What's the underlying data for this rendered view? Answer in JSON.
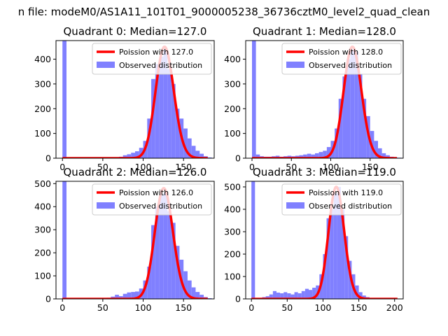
{
  "figure": {
    "suptitle": "n file: modeM0/AS1A11_101T01_9000005238_36736cztM0_level2_quad_clean",
    "colors": {
      "hist": "#8080ff",
      "fit": "#ff0000"
    }
  },
  "chart_data": [
    {
      "type": "bar+line",
      "title": "Quadrant 0: Median=127.0",
      "xlim": [
        -8,
        188
      ],
      "ylim": [
        0,
        475
      ],
      "xticks": [
        0,
        50,
        100,
        150
      ],
      "yticks": [
        0,
        100,
        200,
        300,
        400
      ],
      "bin_width": 5,
      "bins": [
        [
          0,
          475
        ],
        [
          5,
          2
        ],
        [
          10,
          1
        ],
        [
          15,
          1
        ],
        [
          20,
          1
        ],
        [
          25,
          1
        ],
        [
          30,
          1
        ],
        [
          35,
          1
        ],
        [
          40,
          1
        ],
        [
          45,
          1
        ],
        [
          50,
          2
        ],
        [
          55,
          2
        ],
        [
          60,
          3
        ],
        [
          65,
          4
        ],
        [
          70,
          6
        ],
        [
          75,
          12
        ],
        [
          80,
          16
        ],
        [
          85,
          22
        ],
        [
          90,
          28
        ],
        [
          95,
          42
        ],
        [
          100,
          70
        ],
        [
          105,
          160
        ],
        [
          110,
          320
        ],
        [
          115,
          380
        ],
        [
          120,
          410
        ],
        [
          125,
          440
        ],
        [
          130,
          360
        ],
        [
          135,
          300
        ],
        [
          140,
          200
        ],
        [
          145,
          160
        ],
        [
          150,
          120
        ],
        [
          155,
          80
        ],
        [
          160,
          50
        ],
        [
          165,
          30
        ],
        [
          170,
          18
        ],
        [
          175,
          8
        ],
        [
          180,
          3
        ]
      ],
      "fit": {
        "mean": 127.0,
        "peak": 450
      },
      "legend": {
        "fit_label": "Poission with 127.0",
        "hist_label": "Observed distribution"
      }
    },
    {
      "type": "bar+line",
      "title": "Quadrant 1: Median=128.0",
      "xlim": [
        -8,
        192
      ],
      "ylim": [
        0,
        475
      ],
      "xticks": [
        0,
        50,
        100,
        150
      ],
      "yticks": [
        0,
        100,
        200,
        300,
        400
      ],
      "bin_width": 5,
      "bins": [
        [
          0,
          475
        ],
        [
          5,
          15
        ],
        [
          10,
          8
        ],
        [
          15,
          6
        ],
        [
          20,
          6
        ],
        [
          25,
          8
        ],
        [
          30,
          10
        ],
        [
          35,
          6
        ],
        [
          40,
          8
        ],
        [
          45,
          10
        ],
        [
          50,
          8
        ],
        [
          55,
          10
        ],
        [
          60,
          12
        ],
        [
          65,
          15
        ],
        [
          70,
          18
        ],
        [
          75,
          15
        ],
        [
          80,
          20
        ],
        [
          85,
          25
        ],
        [
          90,
          30
        ],
        [
          95,
          45
        ],
        [
          100,
          70
        ],
        [
          105,
          120
        ],
        [
          110,
          240
        ],
        [
          115,
          330
        ],
        [
          120,
          400
        ],
        [
          125,
          440
        ],
        [
          130,
          430
        ],
        [
          135,
          340
        ],
        [
          140,
          240
        ],
        [
          145,
          170
        ],
        [
          150,
          110
        ],
        [
          155,
          70
        ],
        [
          160,
          40
        ],
        [
          165,
          20
        ],
        [
          170,
          12
        ],
        [
          175,
          6
        ],
        [
          180,
          3
        ],
        [
          185,
          2
        ]
      ],
      "fit": {
        "mean": 128.0,
        "peak": 450
      },
      "legend": {
        "fit_label": "Poission with 128.0",
        "hist_label": "Observed distribution"
      }
    },
    {
      "type": "bar+line",
      "title": "Quadrant 2: Median=126.0",
      "xlim": [
        -8,
        188
      ],
      "ylim": [
        0,
        510
      ],
      "xticks": [
        0,
        50,
        100,
        150
      ],
      "yticks": [
        0,
        100,
        200,
        300,
        400,
        500
      ],
      "bin_width": 5,
      "bins": [
        [
          0,
          510
        ],
        [
          5,
          2
        ],
        [
          10,
          1
        ],
        [
          15,
          1
        ],
        [
          20,
          1
        ],
        [
          25,
          1
        ],
        [
          30,
          1
        ],
        [
          35,
          1
        ],
        [
          40,
          2
        ],
        [
          45,
          3
        ],
        [
          50,
          3
        ],
        [
          55,
          5
        ],
        [
          60,
          10
        ],
        [
          65,
          18
        ],
        [
          70,
          12
        ],
        [
          75,
          22
        ],
        [
          80,
          28
        ],
        [
          85,
          30
        ],
        [
          90,
          32
        ],
        [
          95,
          45
        ],
        [
          100,
          80
        ],
        [
          105,
          140
        ],
        [
          110,
          320
        ],
        [
          115,
          400
        ],
        [
          120,
          450
        ],
        [
          125,
          460
        ],
        [
          130,
          380
        ],
        [
          135,
          330
        ],
        [
          140,
          230
        ],
        [
          145,
          170
        ],
        [
          150,
          120
        ],
        [
          155,
          80
        ],
        [
          160,
          50
        ],
        [
          165,
          30
        ],
        [
          170,
          18
        ],
        [
          175,
          8
        ],
        [
          180,
          3
        ]
      ],
      "fit": {
        "mean": 126.0,
        "peak": 480
      },
      "legend": {
        "fit_label": "Poission with 126.0",
        "hist_label": "Observed distribution"
      }
    },
    {
      "type": "bar+line",
      "title": "Quadrant 3: Median=119.0",
      "xlim": [
        -8,
        212
      ],
      "ylim": [
        0,
        525
      ],
      "xticks": [
        0,
        50,
        100,
        150,
        200
      ],
      "yticks": [
        0,
        100,
        200,
        300,
        400,
        500
      ],
      "bin_width": 5,
      "bins": [
        [
          0,
          525
        ],
        [
          5,
          4
        ],
        [
          10,
          4
        ],
        [
          15,
          8
        ],
        [
          20,
          12
        ],
        [
          25,
          20
        ],
        [
          30,
          35
        ],
        [
          35,
          28
        ],
        [
          40,
          25
        ],
        [
          45,
          30
        ],
        [
          50,
          25
        ],
        [
          55,
          20
        ],
        [
          60,
          30
        ],
        [
          65,
          25
        ],
        [
          70,
          35
        ],
        [
          75,
          45
        ],
        [
          80,
          40
        ],
        [
          85,
          50
        ],
        [
          90,
          60
        ],
        [
          95,
          110
        ],
        [
          100,
          200
        ],
        [
          105,
          360
        ],
        [
          110,
          400
        ],
        [
          115,
          470
        ],
        [
          120,
          500
        ],
        [
          125,
          400
        ],
        [
          130,
          280
        ],
        [
          135,
          170
        ],
        [
          140,
          110
        ],
        [
          145,
          60
        ],
        [
          150,
          30
        ],
        [
          155,
          15
        ],
        [
          160,
          8
        ],
        [
          165,
          4
        ],
        [
          170,
          2
        ],
        [
          175,
          1
        ]
      ],
      "fit": {
        "mean": 119.0,
        "peak": 500
      },
      "legend": {
        "fit_label": "Poission with 119.0",
        "hist_label": "Observed distribution"
      }
    }
  ]
}
